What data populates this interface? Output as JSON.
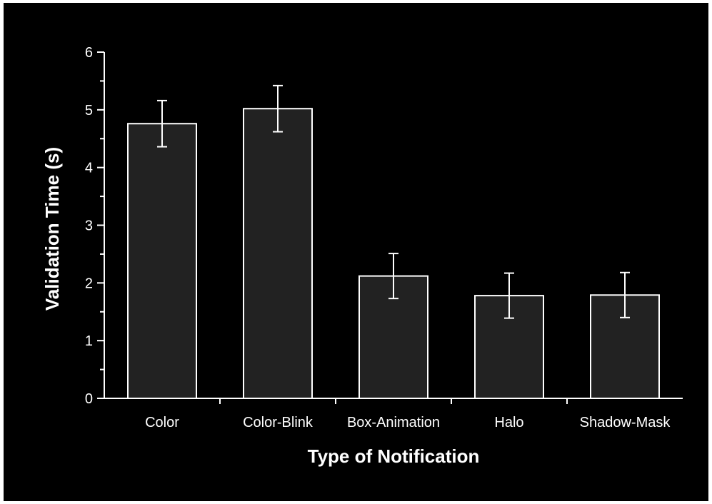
{
  "chart_data": {
    "type": "bar",
    "title": "",
    "xlabel": "Type of Notification",
    "ylabel": "Validation Time (s)",
    "categories": [
      "Color",
      "Color-Blink",
      "Box-Animation",
      "Halo",
      "Shadow-Mask"
    ],
    "values": [
      4.76,
      5.02,
      2.12,
      1.78,
      1.79
    ],
    "error": [
      0.4,
      0.4,
      0.39,
      0.39,
      0.39
    ],
    "ylim": [
      0,
      6
    ],
    "yticks": [
      "0",
      "1",
      "2",
      "3",
      "4",
      "5",
      "6"
    ],
    "grid": false,
    "legend": "none"
  },
  "colors": {
    "background": "#000000",
    "bar_fill": "#222222",
    "bar_stroke": "#ffffff",
    "axis": "#ffffff",
    "text": "#ffffff"
  }
}
